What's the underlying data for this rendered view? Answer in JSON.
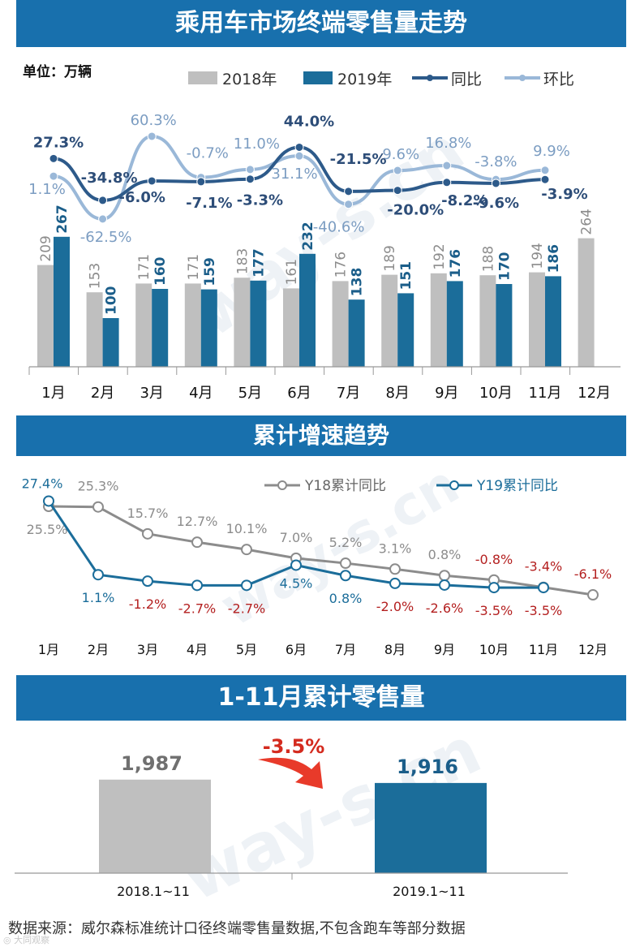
{
  "header": {
    "title1": "乘用车市场终端零售量走势",
    "title2": "累计增速趋势",
    "title3": "1-11月累计零售量"
  },
  "unit_label": "单位：万辆",
  "footer": "数据来源：威尔森标准统计口径终端零售量数据,不包含跑车等部分数据",
  "watermark": "way-s.cn",
  "colors": {
    "gray": "#bfbfbf",
    "blue": "#1b6d9a",
    "yoy": "#2d5a8a",
    "mom": "#9ab8d8",
    "red": "#b42020",
    "banner": "#1870ad"
  },
  "chart_data": [
    {
      "type": "bar",
      "categories": [
        "1月",
        "2月",
        "3月",
        "4月",
        "5月",
        "6月",
        "7月",
        "8月",
        "9月",
        "10月",
        "11月",
        "12月"
      ],
      "series": [
        {
          "name": "2018年",
          "values": [
            209,
            153,
            171,
            171,
            183,
            161,
            176,
            189,
            192,
            188,
            194,
            264
          ]
        },
        {
          "name": "2019年",
          "values": [
            267,
            100,
            160,
            159,
            177,
            232,
            138,
            151,
            176,
            170,
            186,
            null
          ]
        }
      ],
      "lines": [
        {
          "name": "同比",
          "values": [
            "27.3%",
            "-34.8%",
            "-6.0%",
            "-7.1%",
            "-3.3%",
            "44.0%",
            "-21.5%",
            "-20.0%",
            "-8.2%",
            "-9.6%",
            "-3.9%",
            null
          ]
        },
        {
          "name": "环比",
          "values": [
            "1.1%",
            "-62.5%",
            "60.3%",
            "-0.7%",
            "11.0%",
            "31.1%",
            "-40.6%",
            "9.6%",
            "16.8%",
            "-3.8%",
            "9.9%",
            null
          ]
        }
      ],
      "ylabel": "单位：万辆",
      "legend": "top"
    },
    {
      "type": "line",
      "categories": [
        "1月",
        "2月",
        "3月",
        "4月",
        "5月",
        "6月",
        "7月",
        "8月",
        "9月",
        "10月",
        "11月",
        "12月"
      ],
      "series": [
        {
          "name": "Y18累计同比",
          "values": [
            "25.5%",
            "25.3%",
            "15.7%",
            "12.7%",
            "10.1%",
            "7.0%",
            "5.2%",
            "3.1%",
            "0.8%",
            "-0.8%",
            "-3.4%",
            "-6.1%"
          ]
        },
        {
          "name": "Y19累计同比",
          "values": [
            "27.4%",
            "1.1%",
            "-1.2%",
            "-2.7%",
            "-2.7%",
            "4.5%",
            "0.8%",
            "-2.0%",
            "-2.6%",
            "-3.5%",
            "-3.5%",
            null
          ]
        }
      ],
      "legend": "top-right"
    },
    {
      "type": "bar",
      "categories": [
        "2018.1~11",
        "2019.1~11"
      ],
      "values": [
        "1,987",
        "1,916"
      ],
      "change": "-3.5%"
    }
  ]
}
